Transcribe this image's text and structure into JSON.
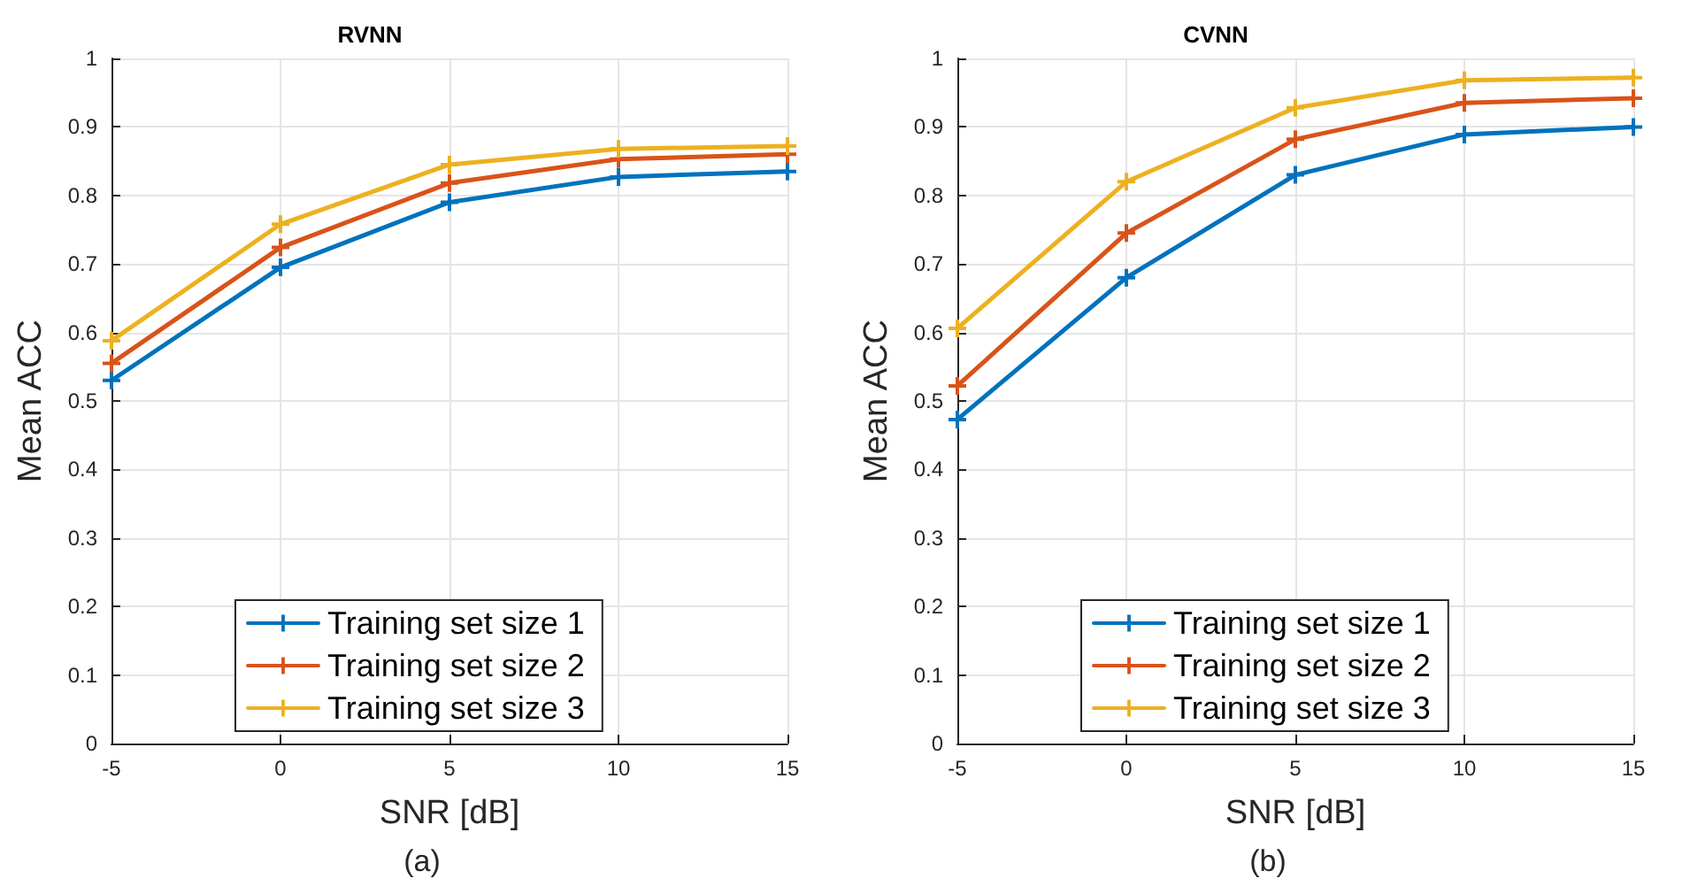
{
  "chart_data": [
    {
      "type": "line",
      "title": "RVNN",
      "xlabel": "SNR [dB]",
      "ylabel": "Mean ACC",
      "x": [
        -5,
        0,
        5,
        10,
        15
      ],
      "series": [
        {
          "name": "Training set size 1",
          "color": "#0072bd",
          "values": [
            0.53,
            0.695,
            0.79,
            0.827,
            0.835
          ]
        },
        {
          "name": "Training set size 2",
          "color": "#d95319",
          "values": [
            0.555,
            0.724,
            0.818,
            0.853,
            0.86
          ]
        },
        {
          "name": "Training set size 3",
          "color": "#edb120",
          "values": [
            0.588,
            0.758,
            0.845,
            0.868,
            0.872
          ]
        }
      ],
      "xlim": [
        -5,
        15
      ],
      "xticks": [
        -5,
        0,
        5,
        10,
        15
      ],
      "ylim": [
        0,
        1
      ],
      "yticks": [
        0,
        0.1,
        0.2,
        0.3,
        0.4,
        0.5,
        0.6,
        0.7,
        0.8,
        0.9,
        1
      ],
      "grid": true,
      "legend": "bottom",
      "marker": "cross",
      "line_style": "solid",
      "annotations": [
        "(a)"
      ]
    },
    {
      "type": "line",
      "title": "CVNN",
      "xlabel": "SNR [dB]",
      "ylabel": "Mean ACC",
      "x": [
        -5,
        0,
        5,
        10,
        15
      ],
      "series": [
        {
          "name": "Training set size 1",
          "color": "#0072bd",
          "values": [
            0.473,
            0.68,
            0.83,
            0.889,
            0.9
          ]
        },
        {
          "name": "Training set size 2",
          "color": "#d95319",
          "values": [
            0.522,
            0.745,
            0.882,
            0.935,
            0.942
          ]
        },
        {
          "name": "Training set size 3",
          "color": "#edb120",
          "values": [
            0.606,
            0.82,
            0.928,
            0.968,
            0.972
          ]
        }
      ],
      "xlim": [
        -5,
        15
      ],
      "xticks": [
        -5,
        0,
        5,
        10,
        15
      ],
      "ylim": [
        0,
        1
      ],
      "yticks": [
        0,
        0.1,
        0.2,
        0.3,
        0.4,
        0.5,
        0.6,
        0.7,
        0.8,
        0.9,
        1
      ],
      "grid": true,
      "legend": "bottom",
      "marker": "cross",
      "line_style": "solid",
      "annotations": [
        "(b)"
      ]
    }
  ]
}
